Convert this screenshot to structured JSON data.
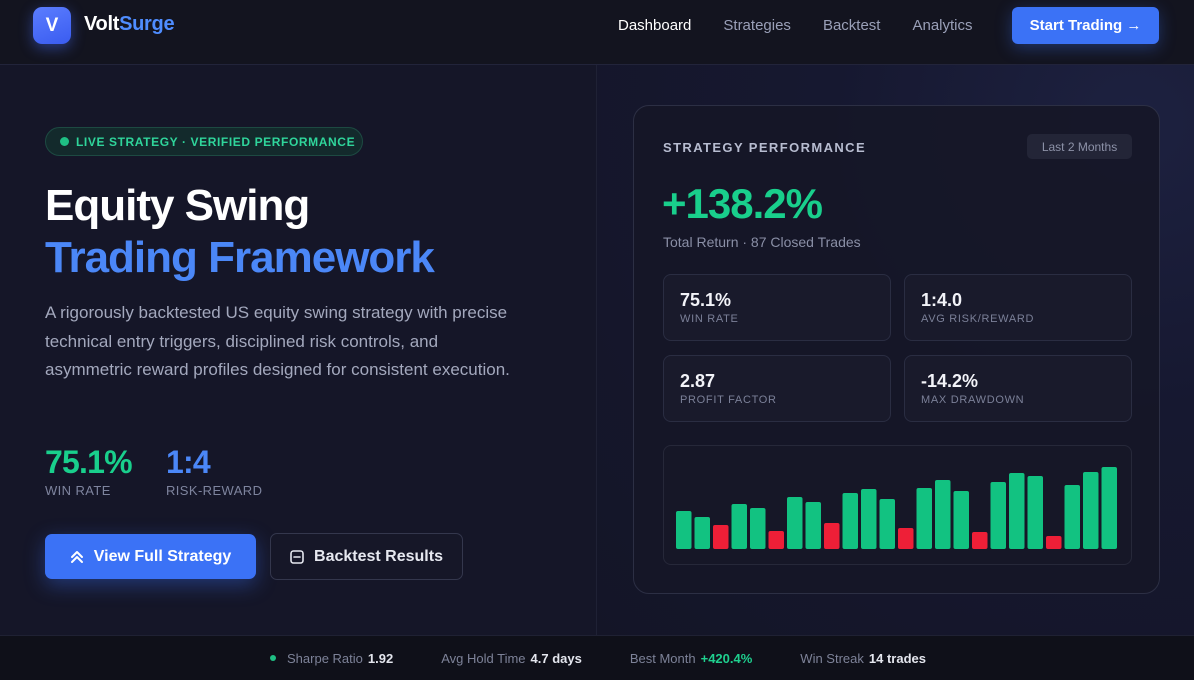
{
  "nav": {
    "logo_letter": "V",
    "brand_part1": "Volt",
    "brand_part2": "Surge",
    "links": [
      "Dashboard",
      "Strategies",
      "Backtest",
      "Analytics"
    ],
    "active_link": "Dashboard",
    "cta_label": "Start Trading →"
  },
  "hero": {
    "badge": "LIVE STRATEGY · VERIFIED PERFORMANCE",
    "title_line1": "Equity Swing",
    "title_line2": "Trading Framework",
    "description": "A rigorously backtested US equity swing strategy with precise technical entry triggers, disciplined risk controls, and asymmetric reward profiles designed for consistent execution.",
    "stats": [
      {
        "value": "75.1%",
        "label": "WIN RATE",
        "color": "#19cf8c"
      },
      {
        "value": "1:4",
        "label": "RISK-REWARD",
        "color": "#4b87f7"
      }
    ],
    "primary_button": "View Full Strategy",
    "secondary_button": "Backtest Results"
  },
  "card": {
    "title": "STRATEGY PERFORMANCE",
    "period": "Last 2 Months",
    "total_return": "+138.2%",
    "subtitle": "Total Return · 87 Closed Trades",
    "metrics": [
      {
        "value": "75.1%",
        "label": "WIN RATE"
      },
      {
        "value": "1:4.0",
        "label": "AVG RISK/REWARD"
      },
      {
        "value": "2.87",
        "label": "PROFIT FACTOR"
      },
      {
        "value": "-14.2%",
        "label": "MAX DRAWDOWN"
      }
    ],
    "chart": {
      "bars": [
        {
          "h": 38,
          "win": true
        },
        {
          "h": 32,
          "win": true
        },
        {
          "h": 24,
          "win": false
        },
        {
          "h": 45,
          "win": true
        },
        {
          "h": 41,
          "win": true
        },
        {
          "h": 18,
          "win": false
        },
        {
          "h": 52,
          "win": true
        },
        {
          "h": 47,
          "win": true
        },
        {
          "h": 26,
          "win": false
        },
        {
          "h": 56,
          "win": true
        },
        {
          "h": 60,
          "win": true
        },
        {
          "h": 50,
          "win": true
        },
        {
          "h": 21,
          "win": false
        },
        {
          "h": 61,
          "win": true
        },
        {
          "h": 69,
          "win": true
        },
        {
          "h": 58,
          "win": true
        },
        {
          "h": 17,
          "win": false
        },
        {
          "h": 67,
          "win": true
        },
        {
          "h": 76,
          "win": true
        },
        {
          "h": 73,
          "win": true
        },
        {
          "h": 13,
          "win": false
        },
        {
          "h": 64,
          "win": true
        },
        {
          "h": 77,
          "win": true
        },
        {
          "h": 82,
          "win": true
        }
      ],
      "win_color": "#12c281",
      "loss_color": "#ee1f37"
    }
  },
  "footer": {
    "items": [
      {
        "label": "Sharpe Ratio",
        "value": "1.92",
        "green": false
      },
      {
        "label": "Avg Hold Time",
        "value": "4.7 days",
        "green": false
      },
      {
        "label": "Best Month",
        "value": "+420.4%",
        "green": true
      },
      {
        "label": "Win Streak",
        "value": "14 trades",
        "green": false
      }
    ]
  }
}
